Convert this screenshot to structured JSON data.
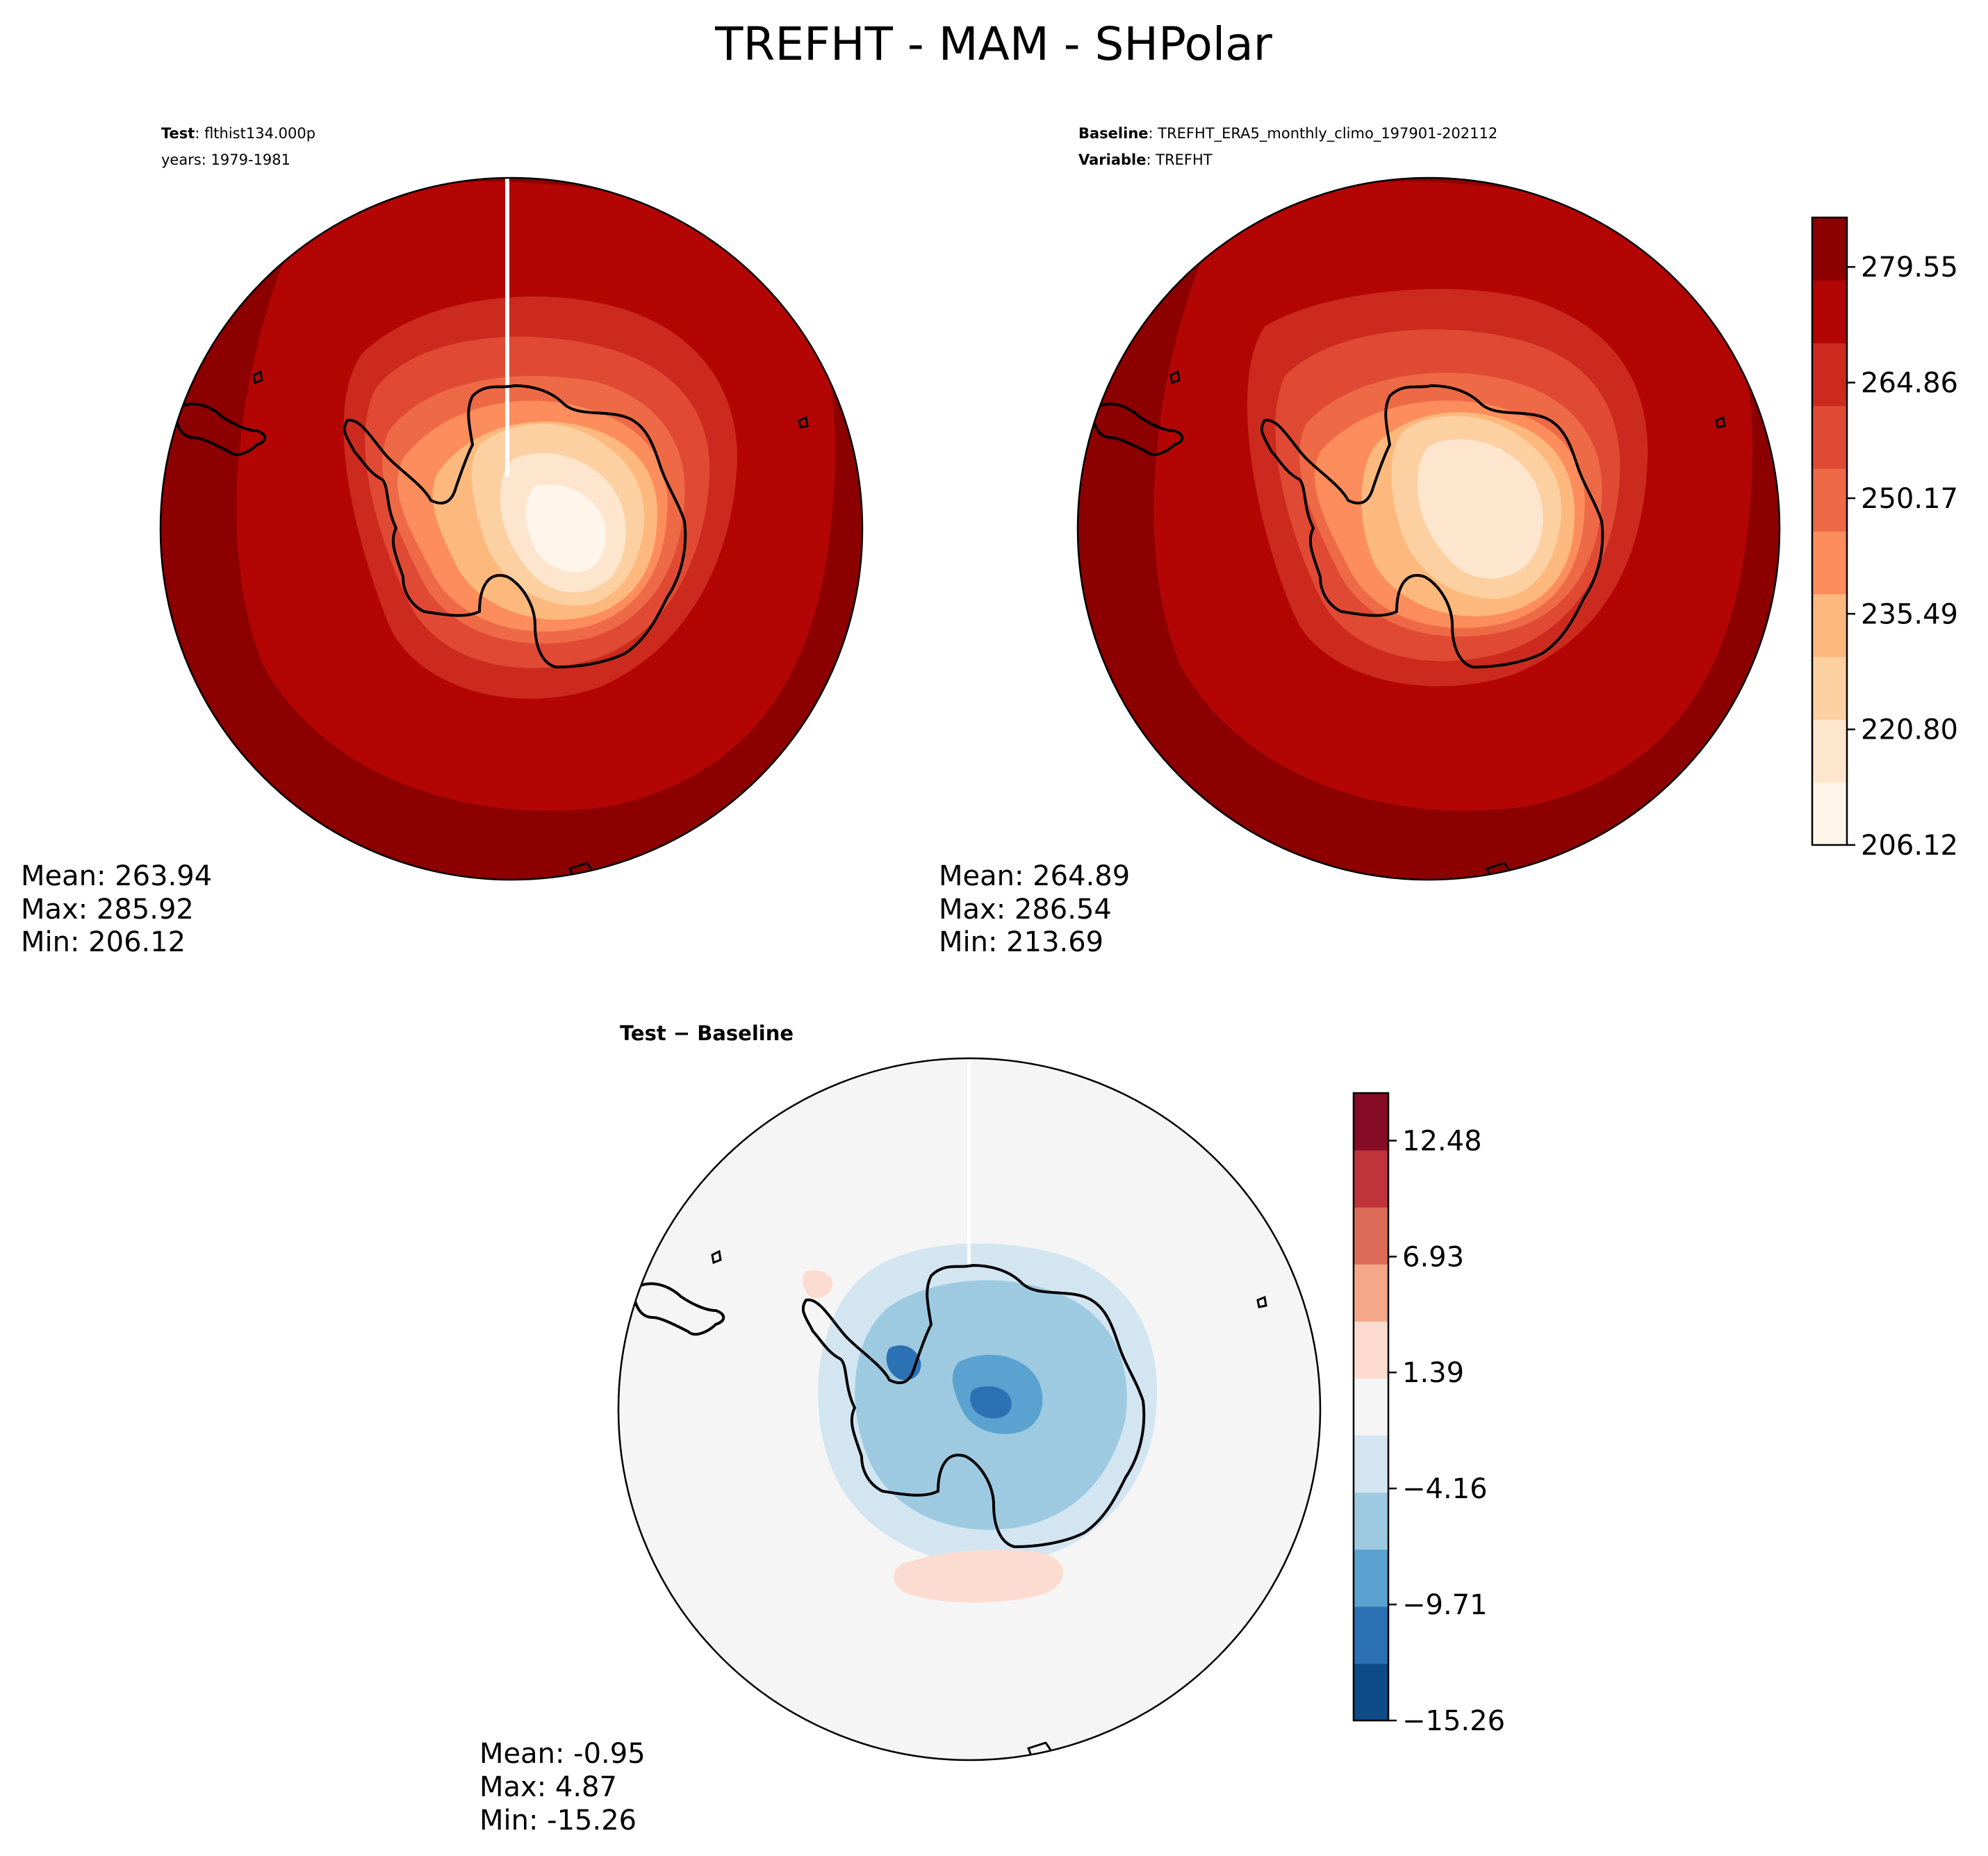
{
  "figure": {
    "title": "TREFHT - MAM - SHPolar"
  },
  "test_panel": {
    "label_bold": "Test",
    "label_value": ": flthist134.000p",
    "years_line": "years: 1979-1981",
    "mean": "Mean: 263.94",
    "max": "Max: 285.92",
    "min": "Min: 206.12"
  },
  "baseline_panel": {
    "label_bold": "Baseline",
    "label_value": ": TREFHT_ERA5_monthly_climo_197901-202112",
    "variable_bold": "Variable",
    "variable_value": ": TREFHT",
    "mean": "Mean: 264.89",
    "max": "Max: 286.54",
    "min": "Min: 213.69"
  },
  "diff_panel": {
    "title": "Test − Baseline",
    "mean": "Mean: -0.95",
    "max": "Max:  4.87",
    "min": "Min: -15.26"
  },
  "colorbar_abs": {
    "ticks": [
      "206.12",
      "220.80",
      "235.49",
      "250.17",
      "264.86",
      "279.55"
    ],
    "colors": [
      "#fff5eb",
      "#fee6ce",
      "#fdd0a2",
      "#fdb97d",
      "#fd8d5c",
      "#ee6a46",
      "#e04a34",
      "#cc2a1e",
      "#b30604",
      "#8c0000"
    ]
  },
  "colorbar_diff": {
    "ticks": [
      "−15.26",
      "−9.71",
      "−4.16",
      "1.39",
      "6.93",
      "12.48"
    ],
    "colors": [
      "#0d4a87",
      "#2b72b5",
      "#5aa2cf",
      "#9dcae1",
      "#d2e5f1",
      "#f5f5f5",
      "#fcdcd0",
      "#f4a888",
      "#dc6b57",
      "#c0333a",
      "#860b24"
    ]
  },
  "map_colors": {
    "ocean_outer": "#8c0000",
    "ocean_mid": "#b30604",
    "diff_background": "#f5f5f5"
  }
}
